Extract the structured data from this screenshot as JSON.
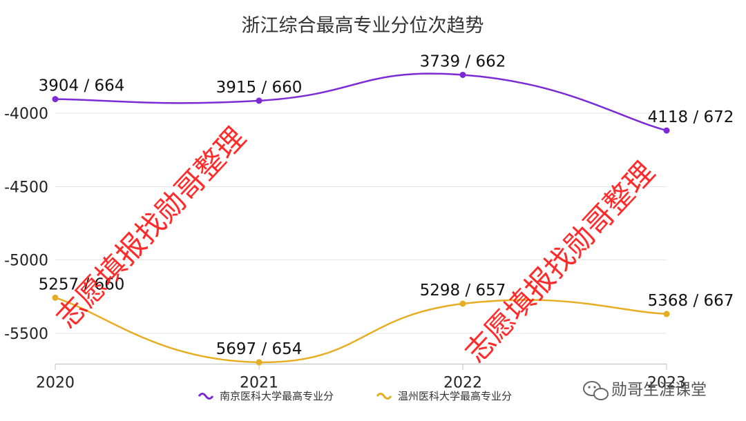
{
  "chart_data": {
    "type": "line",
    "title": "浙江综合最高专业分位次趋势",
    "categories": [
      "2020",
      "2021",
      "2022",
      "2023"
    ],
    "y_axis": {
      "ticks": [
        -4000,
        -4500,
        -5000,
        -5500
      ],
      "tick_labels": [
        "-4000",
        "-4500",
        "-5000",
        "-5500"
      ],
      "ylim": [
        -5700,
        -3700
      ],
      "grid": true
    },
    "series": [
      {
        "name": "南京医科大学最高专业分",
        "color": "#7b2ad6",
        "values": [
          -3904,
          -3915,
          -3739,
          -4118
        ],
        "labels": [
          "3904 / 664",
          "3915 / 660",
          "3739 / 662",
          "4118 / 672"
        ]
      },
      {
        "name": "温州医科大学最高专业分",
        "color": "#e6ad22",
        "values": [
          -5257,
          -5697,
          -5298,
          -5368
        ],
        "labels": [
          "5257 / 660",
          "5697 / 654",
          "5298 / 657",
          "5368 / 667"
        ]
      }
    ],
    "legend_position": "bottom"
  },
  "watermark": "志愿填报找勋哥整理",
  "brand": "勋哥生涯课堂"
}
